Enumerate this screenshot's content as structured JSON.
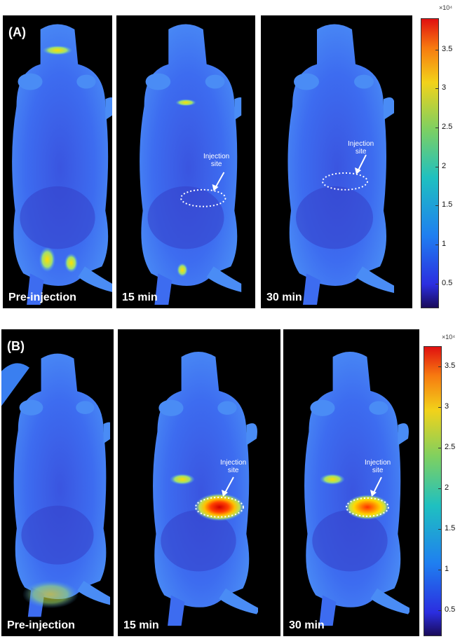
{
  "panel_a": {
    "label": "(A)",
    "times": [
      "Pre-injection",
      "15 min",
      "30 min"
    ],
    "annotation": [
      "Injection",
      "site"
    ],
    "colorbar": {
      "multiplier": "×10⁴",
      "ticks": [
        "3.5",
        "3",
        "2.5",
        "2",
        "1.5",
        "1",
        "0.5"
      ],
      "tick_values": [
        3.5,
        3,
        2.5,
        2,
        1.5,
        1,
        0.5
      ],
      "range": [
        0.2,
        3.9
      ]
    }
  },
  "panel_b": {
    "label": "(B)",
    "times": [
      "Pre-injection",
      "15 min",
      "30 min"
    ],
    "annotation": [
      "Injection",
      "site"
    ],
    "colorbar": {
      "multiplier": "×10⁴",
      "ticks": [
        "3.5",
        "3",
        "2.5",
        "2",
        "1.5",
        "1",
        "0.5"
      ],
      "tick_values": [
        3.5,
        3,
        2.5,
        2,
        1.5,
        1,
        0.5
      ],
      "range": [
        0.2,
        3.75
      ]
    }
  },
  "colormap": [
    "#00007f",
    "#0000ff",
    "#0080ff",
    "#00ffff",
    "#80ff80",
    "#ffff00",
    "#ff8000",
    "#ff0000",
    "#7f0000"
  ]
}
